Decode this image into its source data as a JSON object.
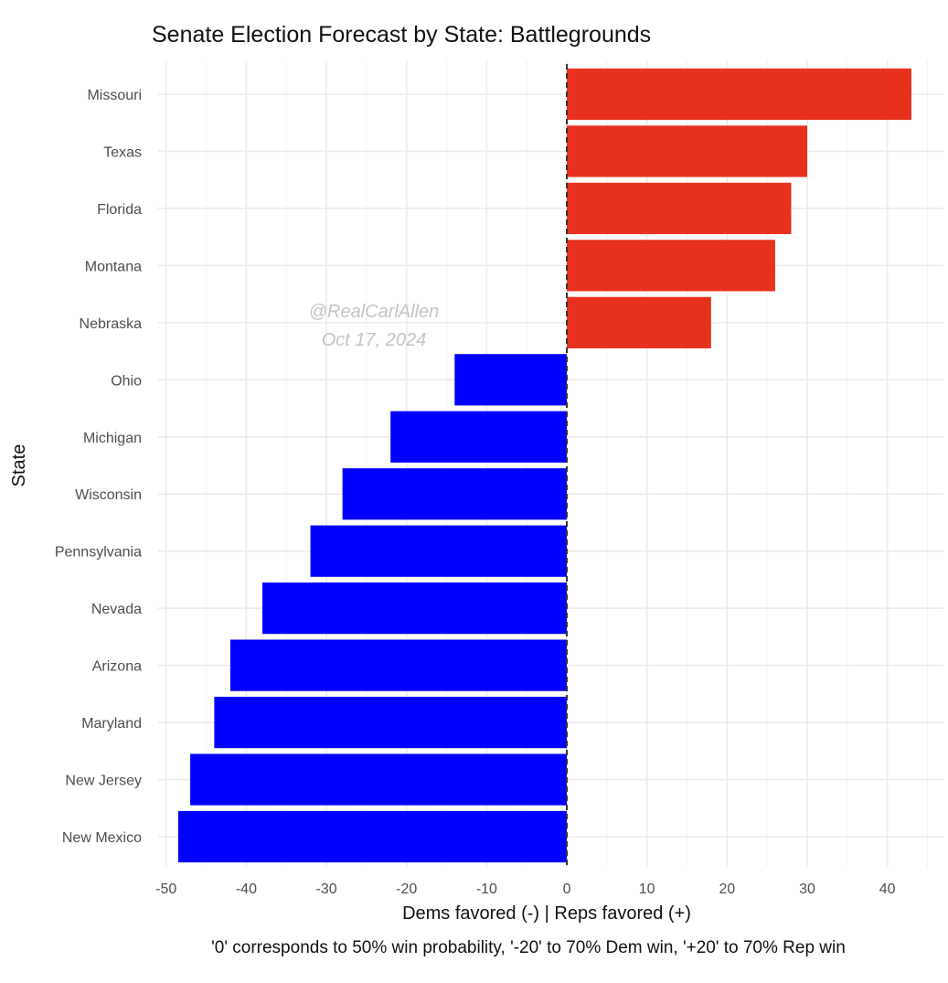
{
  "chart_data": {
    "type": "bar",
    "orientation": "horizontal",
    "title": "Senate Election Forecast by State: Battlegrounds",
    "xlabel": "Dems favored (-) | Reps favored (+)",
    "ylabel": "State",
    "caption": "'0' corresponds to 50% win probability, '-20' to 70% Dem win, '+20' to 70% Rep win",
    "annotation": [
      "@RealCarlAllen",
      "Oct 17, 2024"
    ],
    "categories": [
      "Missouri",
      "Texas",
      "Florida",
      "Montana",
      "Nebraska",
      "Ohio",
      "Michigan",
      "Wisconsin",
      "Pennsylvania",
      "Nevada",
      "Arizona",
      "Maryland",
      "New Jersey",
      "New Mexico"
    ],
    "values": [
      43,
      30,
      28,
      26,
      18,
      -14,
      -22,
      -28,
      -32,
      -38,
      -42,
      -44,
      -47,
      -48.5
    ],
    "xlim": [
      -51,
      47
    ],
    "xticks": [
      -50,
      -40,
      -30,
      -20,
      -10,
      0,
      10,
      20,
      30,
      40
    ],
    "colors": {
      "positive": "#e8321e",
      "negative": "#0000ff"
    },
    "reference_line": {
      "x": 0,
      "style": "dashed"
    },
    "grid": true,
    "legend": "none"
  }
}
